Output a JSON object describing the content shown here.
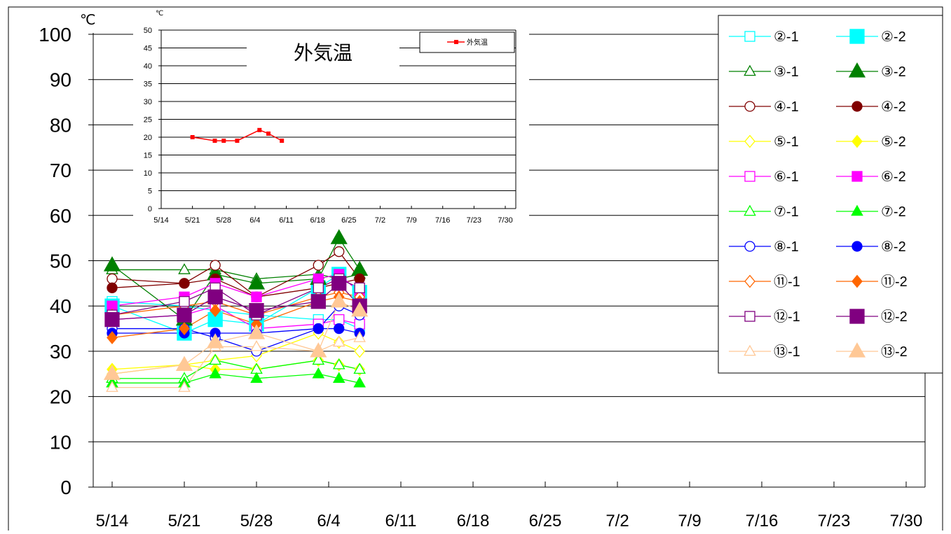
{
  "main": {
    "unit": "℃",
    "yticks": [
      "0",
      "10",
      "20",
      "30",
      "40",
      "50",
      "60",
      "70",
      "80",
      "90",
      "100"
    ],
    "xticks": [
      "5/14",
      "5/21",
      "5/28",
      "6/4",
      "6/11",
      "6/18",
      "6/25",
      "7/2",
      "7/9",
      "7/16",
      "7/23",
      "7/30"
    ]
  },
  "inset": {
    "title": "外気温",
    "unit": "℃",
    "yticks": [
      "0",
      "5",
      "10",
      "15",
      "20",
      "25",
      "30",
      "35",
      "40",
      "45",
      "50"
    ],
    "xticks": [
      "5/14",
      "5/21",
      "5/28",
      "6/4",
      "6/11",
      "6/18",
      "6/25",
      "7/2",
      "7/9",
      "7/16",
      "7/23",
      "7/30"
    ],
    "legend_label": "外気温"
  },
  "chart_data": [
    {
      "type": "line",
      "title": "",
      "ylabel": "℃",
      "ylim": [
        0,
        100
      ],
      "xlim": [
        "5/14",
        "7/30"
      ],
      "x_ticks": [
        "5/14",
        "5/21",
        "5/28",
        "6/4",
        "6/11",
        "6/18",
        "6/25",
        "7/2",
        "7/9",
        "7/16",
        "7/23",
        "7/30"
      ],
      "grid": "horizontal",
      "legend_position": "top-right",
      "x": [
        "5/14",
        "5/21",
        "5/24",
        "5/28",
        "6/3",
        "6/5",
        "6/7"
      ],
      "series": [
        {
          "name": "②-1",
          "marker": "square",
          "filled": false,
          "color": "#00FFFF",
          "values": [
            41,
            40,
            39,
            38,
            37,
            37,
            35
          ]
        },
        {
          "name": "②-2",
          "marker": "square",
          "filled": true,
          "big": true,
          "color": "#00FFFF",
          "values": [
            40,
            34,
            37,
            36,
            44,
            47,
            43
          ]
        },
        {
          "name": "③-1",
          "marker": "triangle",
          "filled": false,
          "color": "#008000",
          "values": [
            48,
            48,
            48,
            46,
            47,
            46,
            47
          ]
        },
        {
          "name": "③-2",
          "marker": "triangle",
          "filled": true,
          "big": true,
          "color": "#008000",
          "values": [
            49,
            37,
            47,
            45,
            46,
            55,
            48
          ]
        },
        {
          "name": "④-1",
          "marker": "circle",
          "filled": false,
          "color": "#800000",
          "values": [
            46,
            45,
            49,
            42,
            49,
            52,
            46
          ]
        },
        {
          "name": "④-2",
          "marker": "circle",
          "filled": true,
          "color": "#800000",
          "values": [
            44,
            45,
            46,
            42,
            44,
            45,
            46
          ]
        },
        {
          "name": "⑤-1",
          "marker": "diamond",
          "filled": false,
          "color": "#FFFF00",
          "values": [
            25,
            27,
            28,
            29,
            34,
            32,
            30
          ]
        },
        {
          "name": "⑤-2",
          "marker": "diamond",
          "filled": true,
          "color": "#FFFF00",
          "values": [
            26,
            27,
            26,
            26,
            28,
            27,
            26
          ]
        },
        {
          "name": "⑥-1",
          "marker": "square",
          "filled": false,
          "color": "#FF00FF",
          "values": [
            37,
            38,
            40,
            35,
            36,
            37,
            36
          ]
        },
        {
          "name": "⑥-2",
          "marker": "square",
          "filled": true,
          "color": "#FF00FF",
          "values": [
            40,
            42,
            45,
            42,
            46,
            47,
            43
          ]
        },
        {
          "name": "⑦-1",
          "marker": "triangle",
          "filled": false,
          "color": "#00FF00",
          "values": [
            24,
            24,
            28,
            26,
            28,
            27,
            26
          ]
        },
        {
          "name": "⑦-2",
          "marker": "triangle",
          "filled": true,
          "color": "#00FF00",
          "values": [
            23,
            23,
            25,
            24,
            25,
            24,
            23
          ]
        },
        {
          "name": "⑧-1",
          "marker": "circle",
          "filled": false,
          "color": "#0000FF",
          "values": [
            35,
            35,
            33,
            30,
            35,
            40,
            38
          ]
        },
        {
          "name": "⑧-2",
          "marker": "circle",
          "filled": true,
          "color": "#0000FF",
          "values": [
            34,
            34,
            34,
            34,
            35,
            35,
            34
          ]
        },
        {
          "name": "⑪-1",
          "marker": "diamond",
          "filled": false,
          "color": "#FF6600",
          "values": [
            38,
            40,
            41,
            38,
            42,
            43,
            42
          ]
        },
        {
          "name": "⑪-2",
          "marker": "diamond",
          "filled": true,
          "color": "#FF6600",
          "values": [
            33,
            35,
            39,
            36,
            41,
            42,
            41
          ]
        },
        {
          "name": "⑫-1",
          "marker": "square",
          "filled": false,
          "color": "#800080",
          "values": [
            38,
            41,
            44,
            38,
            44,
            46,
            44
          ]
        },
        {
          "name": "⑫-2",
          "marker": "square",
          "filled": true,
          "big": true,
          "color": "#800080",
          "values": [
            37,
            38,
            42,
            39,
            41,
            45,
            40
          ]
        },
        {
          "name": "⑬-1",
          "marker": "triangle",
          "filled": false,
          "color": "#FFC896",
          "values": [
            22,
            22,
            31,
            31,
            30,
            32,
            33
          ]
        },
        {
          "name": "⑬-2",
          "marker": "triangle",
          "filled": true,
          "big": true,
          "color": "#FFC896",
          "values": [
            25,
            27,
            32,
            34,
            30,
            41,
            39
          ]
        }
      ]
    },
    {
      "type": "line",
      "title": "外気温",
      "ylabel": "℃",
      "ylim": [
        0,
        50
      ],
      "xlim": [
        "5/14",
        "7/30"
      ],
      "grid": "horizontal",
      "legend_position": "top-right",
      "series": [
        {
          "name": "外気温",
          "color": "#FF0000",
          "x": [
            "5/21",
            "5/26",
            "5/28",
            "5/31",
            "6/5",
            "6/7",
            "6/10"
          ],
          "values": [
            20,
            19,
            19,
            19,
            22,
            21,
            19
          ]
        }
      ]
    }
  ]
}
